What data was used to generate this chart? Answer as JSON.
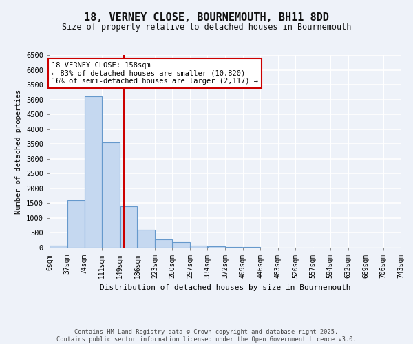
{
  "title": "18, VERNEY CLOSE, BOURNEMOUTH, BH11 8DD",
  "subtitle": "Size of property relative to detached houses in Bournemouth",
  "xlabel": "Distribution of detached houses by size in Bournemouth",
  "ylabel": "Number of detached properties",
  "bar_color": "#c5d8f0",
  "bar_edge_color": "#6699cc",
  "background_color": "#eef2f9",
  "grid_color": "#ffffff",
  "annotation_text": "18 VERNEY CLOSE: 158sqm\n← 83% of detached houses are smaller (10,820)\n16% of semi-detached houses are larger (2,117) →",
  "vline_x": 158,
  "vline_color": "#cc0000",
  "footer_text": "Contains HM Land Registry data © Crown copyright and database right 2025.\nContains public sector information licensed under the Open Government Licence v3.0.",
  "bin_edges": [
    0,
    37,
    74,
    111,
    149,
    186,
    223,
    260,
    297,
    334,
    372,
    409,
    446,
    483,
    520,
    557,
    594,
    632,
    669,
    706,
    743
  ],
  "bar_heights": [
    75,
    1600,
    5100,
    3550,
    1400,
    600,
    280,
    175,
    75,
    50,
    30,
    15,
    8,
    5,
    3,
    2,
    1,
    1,
    0,
    0
  ],
  "ylim": [
    0,
    6500
  ],
  "yticks": [
    0,
    500,
    1000,
    1500,
    2000,
    2500,
    3000,
    3500,
    4000,
    4500,
    5000,
    5500,
    6000,
    6500
  ]
}
